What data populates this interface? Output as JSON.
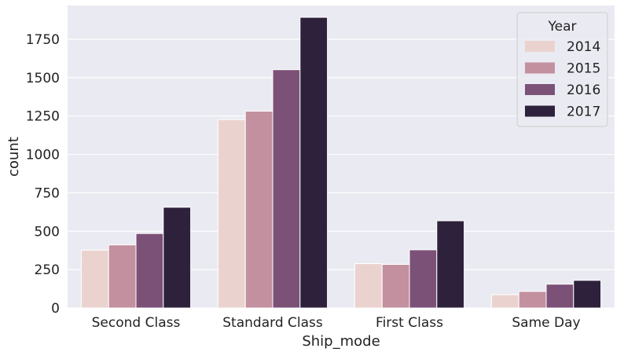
{
  "chart_data": {
    "type": "bar",
    "xlabel": "Ship_mode",
    "ylabel": "count",
    "categories": [
      "Second Class",
      "Standard Class",
      "First Class",
      "Same Day"
    ],
    "series": [
      {
        "name": "2014",
        "color": "#ead3cf",
        "values": [
          377,
          1227,
          289,
          87
        ]
      },
      {
        "name": "2015",
        "color": "#c3909f",
        "values": [
          411,
          1282,
          284,
          108
        ]
      },
      {
        "name": "2016",
        "color": "#7c5178",
        "values": [
          485,
          1552,
          379,
          155
        ]
      },
      {
        "name": "2017",
        "color": "#2d213b",
        "values": [
          656,
          1893,
          568,
          180
        ]
      }
    ],
    "ylim": [
      0,
      1970
    ],
    "yticks": [
      0,
      250,
      500,
      750,
      1000,
      1250,
      1500,
      1750
    ],
    "legend": {
      "title": "Year",
      "placement": "top-right"
    },
    "grid": true,
    "background": "#eaeaf2"
  }
}
